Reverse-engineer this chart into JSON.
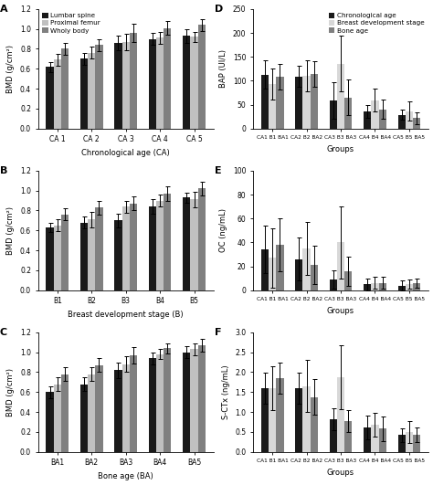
{
  "panel_A": {
    "label": "A",
    "groups": [
      "CA 1",
      "CA 2",
      "CA 3",
      "CA 4",
      "CA 5"
    ],
    "xlabel": "Chronological age (CA)",
    "ylabel": "BMD (g/cm²)",
    "ylim": [
      0,
      1.2
    ],
    "yticks": [
      0.0,
      0.2,
      0.4,
      0.6,
      0.8,
      1.0,
      1.2
    ],
    "legend": true,
    "legend_loc": "upper left",
    "series": [
      {
        "label": "Lumbar spine",
        "color": "#1a1a1a",
        "values": [
          0.62,
          0.7,
          0.86,
          0.9,
          0.93
        ],
        "errors": [
          0.05,
          0.06,
          0.07,
          0.06,
          0.07
        ]
      },
      {
        "label": "Proximal femur",
        "color": "#c0c0c0",
        "values": [
          0.69,
          0.76,
          0.87,
          0.91,
          0.92
        ],
        "errors": [
          0.06,
          0.06,
          0.08,
          0.06,
          0.05
        ]
      },
      {
        "label": "Wholy body",
        "color": "#808080",
        "values": [
          0.8,
          0.84,
          0.96,
          1.01,
          1.04
        ],
        "errors": [
          0.06,
          0.06,
          0.09,
          0.07,
          0.06
        ]
      }
    ]
  },
  "panel_B": {
    "label": "B",
    "groups": [
      "B1",
      "B2",
      "B3",
      "B4",
      "B5"
    ],
    "xlabel": "Breast development stage (B)",
    "ylabel": "BMD (g/cm²)",
    "ylim": [
      0,
      1.2
    ],
    "yticks": [
      0.0,
      0.2,
      0.4,
      0.6,
      0.8,
      1.0,
      1.2
    ],
    "legend": false,
    "series": [
      {
        "label": "Lumbar spine",
        "color": "#1a1a1a",
        "values": [
          0.63,
          0.68,
          0.7,
          0.84,
          0.93
        ],
        "errors": [
          0.05,
          0.06,
          0.07,
          0.07,
          0.05
        ]
      },
      {
        "label": "Proximal femur",
        "color": "#c0c0c0",
        "values": [
          0.65,
          0.71,
          0.84,
          0.9,
          0.91
        ],
        "errors": [
          0.06,
          0.08,
          0.06,
          0.06,
          0.08
        ]
      },
      {
        "label": "Wholy body",
        "color": "#808080",
        "values": [
          0.76,
          0.83,
          0.87,
          0.97,
          1.02
        ],
        "errors": [
          0.06,
          0.07,
          0.07,
          0.07,
          0.07
        ]
      }
    ]
  },
  "panel_C": {
    "label": "C",
    "groups": [
      "BA1",
      "BA2",
      "BA3",
      "BA4",
      "BA5"
    ],
    "xlabel": "Bone age (BA)",
    "ylabel": "BMD (g/cm²)",
    "ylim": [
      0,
      1.2
    ],
    "yticks": [
      0.0,
      0.2,
      0.4,
      0.6,
      0.8,
      1.0,
      1.2
    ],
    "legend": false,
    "series": [
      {
        "label": "Lumbar spine",
        "color": "#1a1a1a",
        "values": [
          0.6,
          0.68,
          0.82,
          0.94,
          1.0
        ],
        "errors": [
          0.06,
          0.07,
          0.08,
          0.06,
          0.06
        ]
      },
      {
        "label": "Proximal femur",
        "color": "#c0c0c0",
        "values": [
          0.68,
          0.78,
          0.88,
          0.98,
          1.03
        ],
        "errors": [
          0.07,
          0.07,
          0.08,
          0.05,
          0.06
        ]
      },
      {
        "label": "Wholy body",
        "color": "#808080",
        "values": [
          0.78,
          0.87,
          0.97,
          1.04,
          1.07
        ],
        "errors": [
          0.07,
          0.07,
          0.08,
          0.05,
          0.06
        ]
      }
    ]
  },
  "panel_D": {
    "label": "D",
    "groups": [
      "CA1 B1 BA1",
      "CA2 B2 BA2",
      "CA3 B3 BA3",
      "CA4 B4 BA4",
      "CA5 B5 BA5"
    ],
    "xlabel": "Groups",
    "ylabel": "BAP (UI/L)",
    "ylim": [
      0,
      250
    ],
    "yticks": [
      0,
      50,
      100,
      150,
      200,
      250
    ],
    "legend": true,
    "legend_loc": "upper right",
    "series": [
      {
        "label": "Chronological age",
        "color": "#1a1a1a",
        "values": [
          113,
          109,
          59,
          36,
          29
        ],
        "errors": [
          30,
          22,
          38,
          13,
          11
        ]
      },
      {
        "label": "Breast development stage",
        "color": "#d8d8d8",
        "values": [
          93,
          110,
          136,
          59,
          36
        ],
        "errors": [
          32,
          32,
          58,
          24,
          20
        ]
      },
      {
        "label": "Bone age",
        "color": "#808080",
        "values": [
          109,
          114,
          65,
          40,
          22
        ],
        "errors": [
          27,
          27,
          37,
          20,
          12
        ]
      }
    ]
  },
  "panel_E": {
    "label": "E",
    "groups": [
      "CA1 B1 BA1",
      "CA2 B2 BA2",
      "CA3 B3 BA3",
      "CA4 B4 BA4",
      "CA5 B5 BA5"
    ],
    "xlabel": "Groups",
    "ylabel": "OC (ng/mL)",
    "ylim": [
      0,
      100
    ],
    "yticks": [
      0,
      20,
      40,
      60,
      80,
      100
    ],
    "legend": false,
    "series": [
      {
        "label": "Chronological age",
        "color": "#1a1a1a",
        "values": [
          34,
          26,
          9,
          5,
          4
        ],
        "errors": [
          20,
          18,
          8,
          5,
          4
        ]
      },
      {
        "label": "Breast development stage",
        "color": "#d8d8d8",
        "values": [
          27,
          35,
          40,
          6,
          5
        ],
        "errors": [
          25,
          22,
          30,
          5,
          4
        ]
      },
      {
        "label": "Bone age",
        "color": "#808080",
        "values": [
          38,
          21,
          16,
          6,
          6
        ],
        "errors": [
          22,
          16,
          12,
          5,
          4
        ]
      }
    ]
  },
  "panel_F": {
    "label": "F",
    "groups": [
      "CA1 B1 BA1",
      "CA2 B2 BA2",
      "CA3 B3 BA3",
      "CA4 B4 BA4",
      "CA5 B5 BA5"
    ],
    "xlabel": "Groups",
    "ylabel": "S-CTx (ng/mL)",
    "ylim": [
      0.0,
      3.0
    ],
    "yticks": [
      0.0,
      0.5,
      1.0,
      1.5,
      2.0,
      2.5,
      3.0
    ],
    "legend": false,
    "series": [
      {
        "label": "Chronological age",
        "color": "#1a1a1a",
        "values": [
          1.6,
          1.6,
          0.82,
          0.62,
          0.42
        ],
        "errors": [
          0.38,
          0.38,
          0.28,
          0.3,
          0.18
        ]
      },
      {
        "label": "Breast development stage",
        "color": "#d8d8d8",
        "values": [
          1.6,
          1.65,
          1.88,
          0.68,
          0.5
        ],
        "errors": [
          0.55,
          0.65,
          0.8,
          0.3,
          0.28
        ]
      },
      {
        "label": "Bone age",
        "color": "#808080",
        "values": [
          1.85,
          1.38,
          0.78,
          0.58,
          0.43
        ],
        "errors": [
          0.4,
          0.45,
          0.28,
          0.3,
          0.18
        ]
      }
    ]
  },
  "bar_width": 0.22,
  "fontsize_label": 6.0,
  "fontsize_tick": 5.5,
  "fontsize_legend": 5.2,
  "fontsize_panel": 8
}
